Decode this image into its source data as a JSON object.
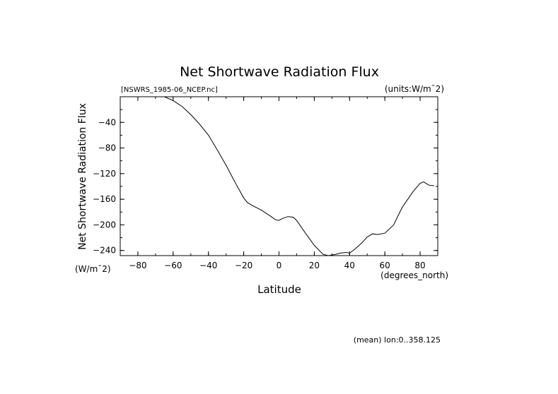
{
  "chart_data": {
    "type": "line",
    "title": "Net Shortwave Radiation Flux",
    "file_label": "[NSWRS_1985-06_NCEP.nc]",
    "units_label": "(units:W/m¯2)",
    "ylabel": "Net Shortwave Radiation Flux",
    "yunits": "(W/m¯2)",
    "xlabel": "Latitude",
    "xunits": "(degrees_north)",
    "footnote": "(mean) lon:0..358.125",
    "xlim": [
      -90,
      90
    ],
    "ylim": [
      -248,
      0
    ],
    "xticks": [
      -80,
      -60,
      -40,
      -20,
      0,
      20,
      40,
      60,
      80
    ],
    "yticks": [
      -40,
      -80,
      -120,
      -160,
      -200,
      -240
    ],
    "grid": false,
    "series": [
      {
        "name": "NSWRS",
        "x": [
          -65,
          -60,
          -55,
          -50,
          -45,
          -40,
          -35,
          -30,
          -25,
          -20,
          -18,
          -15,
          -10,
          -5,
          -2,
          0,
          2,
          5,
          8,
          10,
          15,
          20,
          25,
          28,
          30,
          32,
          35,
          38,
          40,
          43,
          47,
          50,
          53,
          56,
          60,
          65,
          68,
          70,
          73,
          76,
          80,
          82,
          85,
          88
        ],
        "values": [
          0,
          -6,
          -15,
          -28,
          -43,
          -60,
          -83,
          -107,
          -133,
          -158,
          -165,
          -170,
          -177,
          -186,
          -192,
          -193,
          -190,
          -187,
          -188,
          -193,
          -213,
          -232,
          -246,
          -248,
          -247,
          -246,
          -244,
          -243,
          -244,
          -238,
          -228,
          -219,
          -214,
          -215,
          -213,
          -200,
          -183,
          -172,
          -160,
          -148,
          -135,
          -133,
          -138,
          -139
        ]
      }
    ]
  }
}
